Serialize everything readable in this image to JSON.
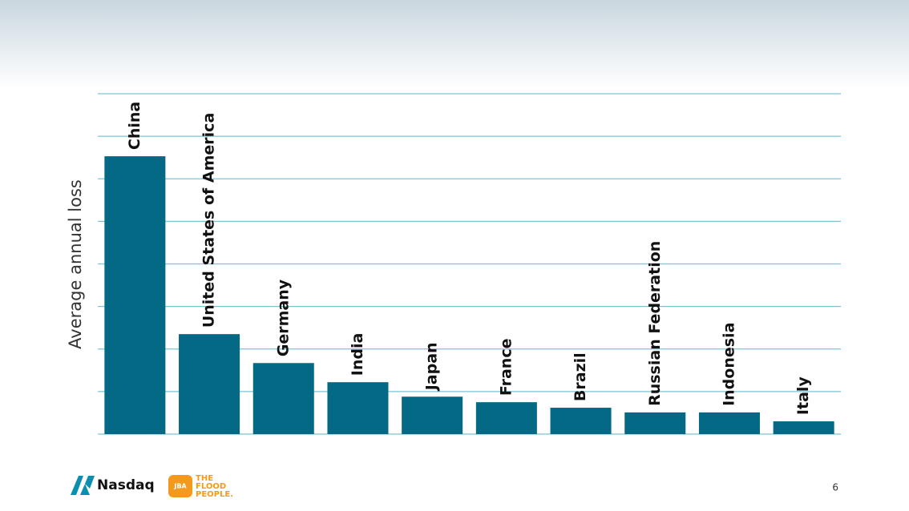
{
  "chart_data": {
    "type": "bar",
    "ylabel": "Average annual loss",
    "categories": [
      "China",
      "United States of America",
      "Germany",
      "India",
      "Japan",
      "France",
      "Brazil",
      "Russian Federation",
      "Indonesia",
      "Italy"
    ],
    "values": [
      6.53,
      2.35,
      1.67,
      1.22,
      0.88,
      0.75,
      0.62,
      0.51,
      0.51,
      0.3
    ],
    "color": "#036985",
    "ylim": [
      0,
      8
    ],
    "yticks": [
      0,
      1,
      2,
      3,
      4,
      5,
      6,
      7,
      8
    ],
    "ytick_labels": false,
    "grid": true
  },
  "footer": {
    "brand": "Nasdaq",
    "partner_badge": "JBA",
    "partner": [
      "THE",
      "FLOOD",
      "PEOPLE."
    ],
    "page_number": "6"
  }
}
